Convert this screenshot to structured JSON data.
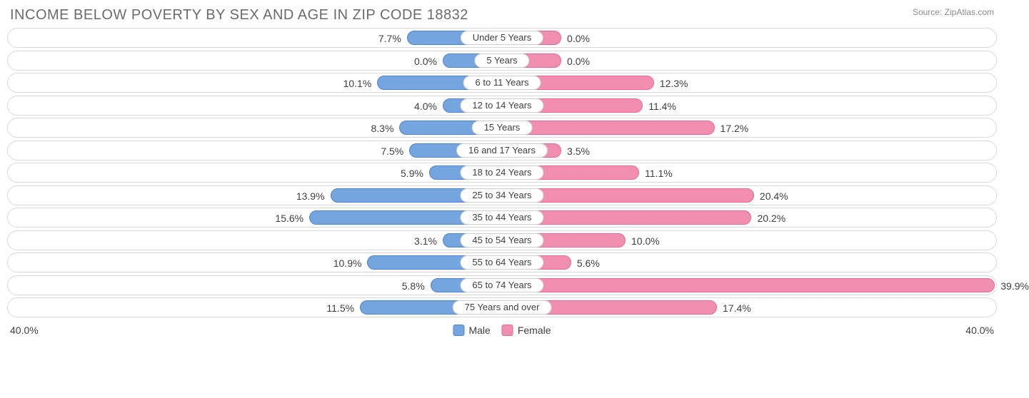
{
  "title": "INCOME BELOW POVERTY BY SEX AND AGE IN ZIP CODE 18832",
  "source": "Source: ZipAtlas.com",
  "chart": {
    "type": "diverging-bar",
    "axis_max": 40.0,
    "axis_label_left": "40.0%",
    "axis_label_right": "40.0%",
    "track_border_color": "#d9d9d9",
    "track_bg": "#ffffff",
    "pill_border_color": "#cfcfcf",
    "label_color": "#404040",
    "male": {
      "fill": "#74a5de",
      "border": "#4f86c6",
      "legend": "Male"
    },
    "female": {
      "fill": "#f28fb1",
      "border": "#e26a97",
      "legend": "Female"
    },
    "rows": [
      {
        "category": "Under 5 Years",
        "male": 7.7,
        "female": 0.0
      },
      {
        "category": "5 Years",
        "male": 0.0,
        "female": 0.0
      },
      {
        "category": "6 to 11 Years",
        "male": 10.1,
        "female": 12.3
      },
      {
        "category": "12 to 14 Years",
        "male": 4.0,
        "female": 11.4
      },
      {
        "category": "15 Years",
        "male": 8.3,
        "female": 17.2
      },
      {
        "category": "16 and 17 Years",
        "male": 7.5,
        "female": 3.5
      },
      {
        "category": "18 to 24 Years",
        "male": 5.9,
        "female": 11.1
      },
      {
        "category": "25 to 34 Years",
        "male": 13.9,
        "female": 20.4
      },
      {
        "category": "35 to 44 Years",
        "male": 15.6,
        "female": 20.2
      },
      {
        "category": "45 to 54 Years",
        "male": 3.1,
        "female": 10.0
      },
      {
        "category": "55 to 64 Years",
        "male": 10.9,
        "female": 5.6
      },
      {
        "category": "65 to 74 Years",
        "male": 5.8,
        "female": 39.9
      },
      {
        "category": "75 Years and over",
        "male": 11.5,
        "female": 17.4
      }
    ]
  }
}
